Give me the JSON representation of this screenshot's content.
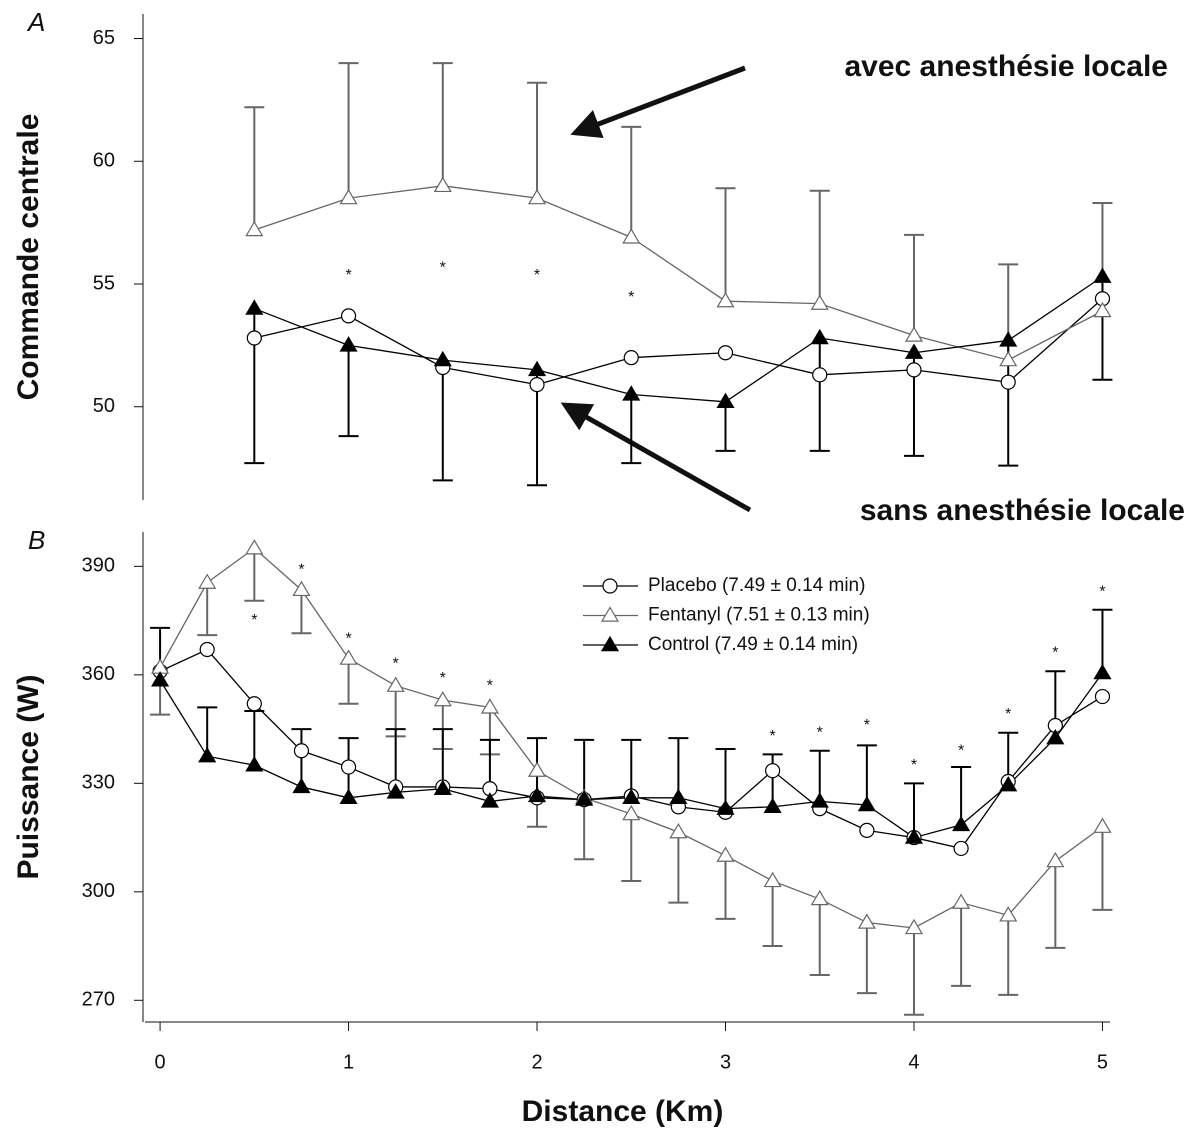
{
  "chart_data": [
    {
      "type": "line",
      "panel_label": "A",
      "ylabel": "Commande centrale",
      "x": [
        0.5,
        1,
        1.5,
        2,
        2.5,
        3,
        3.5,
        4,
        4.5,
        5
      ],
      "xlim": [
        -0.08,
        5.04
      ],
      "ylim": [
        46.2,
        66
      ],
      "yticks": [
        50,
        55,
        60,
        65
      ],
      "series": [
        {
          "name": "Placebo",
          "color": "#000000",
          "marker": "circle",
          "filled": false,
          "values": [
            52.8,
            53.7,
            51.6,
            50.9,
            52.0,
            52.2,
            51.3,
            51.5,
            51.0,
            54.4
          ]
        },
        {
          "name": "Fentanyl",
          "color": "#666666",
          "marker": "triangle",
          "filled": false,
          "values": [
            57.2,
            58.5,
            59.0,
            58.5,
            56.9,
            54.3,
            54.2,
            52.9,
            51.9,
            53.9
          ],
          "errors": [
            5.0,
            5.5,
            5.0,
            4.7,
            4.5,
            4.6,
            4.6,
            4.1,
            3.9,
            4.4
          ],
          "error_direction": "up"
        },
        {
          "name": "Control",
          "color": "#000000",
          "marker": "triangle",
          "filled": true,
          "values": [
            54.0,
            52.5,
            51.9,
            51.5,
            50.5,
            50.2,
            52.8,
            52.2,
            52.7,
            55.3
          ],
          "errors": [
            6.3,
            3.7,
            4.9,
            4.7,
            2.8,
            2.0,
            4.6,
            4.2,
            5.1,
            4.2
          ],
          "error_direction": "down"
        }
      ],
      "annotations": [
        {
          "text": "*",
          "x": 1,
          "y": 55.5
        },
        {
          "text": "*",
          "x": 1.5,
          "y": 55.8
        },
        {
          "text": "*",
          "x": 2,
          "y": 55.5
        },
        {
          "text": "*",
          "x": 2.5,
          "y": 54.6
        }
      ],
      "callouts": [
        "avec anesthésie locale",
        "sans anesthésie locale"
      ]
    },
    {
      "type": "line",
      "panel_label": "B",
      "ylabel": "Puissance (W)",
      "xlabel": "Distance (Km)",
      "x": [
        0,
        0.25,
        0.5,
        0.75,
        1,
        1.25,
        1.5,
        1.75,
        2,
        2.25,
        2.5,
        2.75,
        3,
        3.25,
        3.5,
        3.75,
        4,
        4.25,
        4.5,
        4.75,
        5
      ],
      "xlim": [
        -0.08,
        5.04
      ],
      "xticks": [
        0,
        1,
        2,
        3,
        4,
        5
      ],
      "ylim": [
        264,
        399.5
      ],
      "yticks": [
        270,
        300,
        330,
        360,
        390
      ],
      "legend": "upper center",
      "series": [
        {
          "name": "Placebo (7.49 ± 0.14 min)",
          "color": "#000000",
          "marker": "circle",
          "filled": false,
          "values": [
            361,
            367,
            352,
            339,
            334.5,
            329,
            329,
            328.5,
            326,
            325.5,
            326.5,
            323.5,
            322,
            333.5,
            323,
            317,
            315,
            312,
            330.5,
            346,
            354
          ],
          "errors": [
            12,
            null,
            null,
            null,
            null,
            null,
            null,
            null,
            null,
            null,
            null,
            null,
            null,
            null,
            null,
            null,
            null,
            null,
            null,
            null,
            null
          ],
          "error_direction": "up"
        },
        {
          "name": "Fentanyl (7.51 ± 0.13 min)",
          "color": "#666666",
          "marker": "triangle",
          "filled": false,
          "values": [
            362,
            385.5,
            395,
            383.5,
            364.5,
            357,
            353,
            351,
            333.5,
            326,
            321.5,
            316.5,
            310,
            303,
            298,
            291.5,
            290,
            297,
            293.5,
            308.5,
            318
          ],
          "errors": [
            13,
            14.5,
            14.5,
            12,
            12.5,
            14,
            13.5,
            13,
            15.5,
            17,
            18.5,
            19.5,
            17.5,
            18,
            21,
            19.5,
            24,
            23,
            22,
            24,
            23
          ],
          "error_direction": "down"
        },
        {
          "name": "Control (7.49 ± 0.14 min)",
          "color": "#000000",
          "marker": "triangle",
          "filled": true,
          "values": [
            358.5,
            337.5,
            335,
            329,
            326,
            327.5,
            328.5,
            325,
            326.5,
            325.5,
            326,
            326,
            323,
            323.5,
            325,
            324,
            315,
            318.5,
            329.5,
            342.5,
            360.5
          ],
          "errors": [
            null,
            13.5,
            15,
            16,
            16.5,
            17.5,
            16.5,
            17,
            16,
            16.5,
            16,
            16.5,
            16.5,
            14.5,
            14,
            16.5,
            15,
            16,
            14.5,
            18.5,
            17.5
          ],
          "error_direction": "up"
        }
      ],
      "annotations": [
        {
          "text": "*",
          "x": 0.5,
          "y": 376
        },
        {
          "text": "*",
          "x": 0.75,
          "y": 390
        },
        {
          "text": "*",
          "x": 1,
          "y": 371
        },
        {
          "text": "*",
          "x": 1.25,
          "y": 364
        },
        {
          "text": "*",
          "x": 1.5,
          "y": 360
        },
        {
          "text": "*",
          "x": 1.75,
          "y": 358
        },
        {
          "text": "*",
          "x": 3.25,
          "y": 344
        },
        {
          "text": "*",
          "x": 3.5,
          "y": 345
        },
        {
          "text": "*",
          "x": 3.75,
          "y": 347
        },
        {
          "text": "*",
          "x": 4,
          "y": 336
        },
        {
          "text": "*",
          "x": 4.25,
          "y": 340
        },
        {
          "text": "*",
          "x": 4.5,
          "y": 350
        },
        {
          "text": "*",
          "x": 4.75,
          "y": 367
        },
        {
          "text": "*",
          "x": 5,
          "y": 384
        }
      ]
    }
  ]
}
